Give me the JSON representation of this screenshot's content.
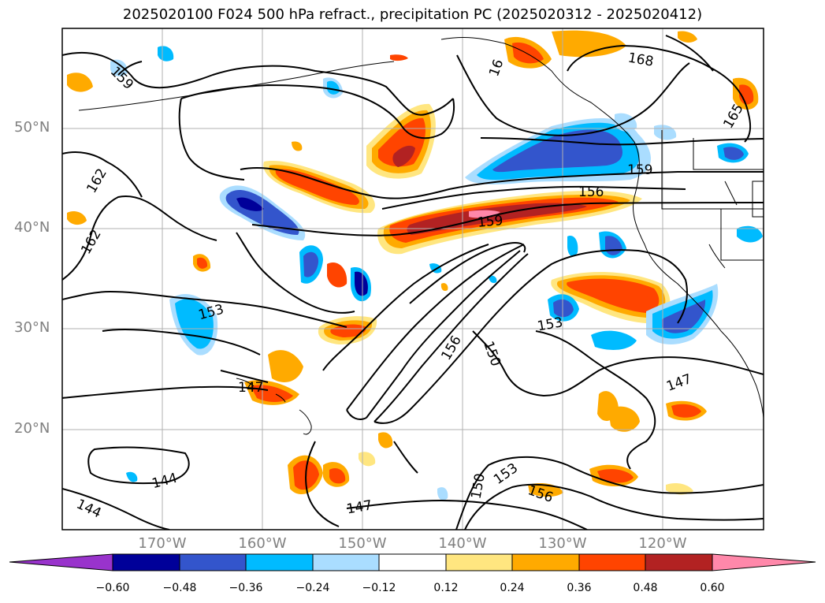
{
  "title": "2025020100 F024 500 hPa refract., precipitation PC (2025020312 - 2025020412)",
  "map": {
    "lat_labels": [
      "50°N",
      "40°N",
      "30°N",
      "20°N"
    ],
    "lon_labels": [
      "170°W",
      "160°W",
      "150°W",
      "140°W",
      "130°W",
      "120°W"
    ],
    "contour_labels": [
      "159",
      "162",
      "162",
      "153",
      "147",
      "144",
      "144",
      "159",
      "156",
      "159",
      "168",
      "165",
      "156",
      "150",
      "153",
      "150",
      "153",
      "156",
      "147",
      "147",
      "16"
    ]
  },
  "colorbar": {
    "ticks": [
      "−0.60",
      "−0.48",
      "−0.36",
      "−0.24",
      "−0.12",
      "0.12",
      "0.24",
      "0.36",
      "0.48",
      "0.60"
    ],
    "colors": [
      "#9933cc",
      "#000099",
      "#3355cc",
      "#00bbff",
      "#aaddff",
      "#ffffff",
      "#ffe680",
      "#ffaa00",
      "#ff4400",
      "#b22222",
      "#ff88aa"
    ]
  }
}
